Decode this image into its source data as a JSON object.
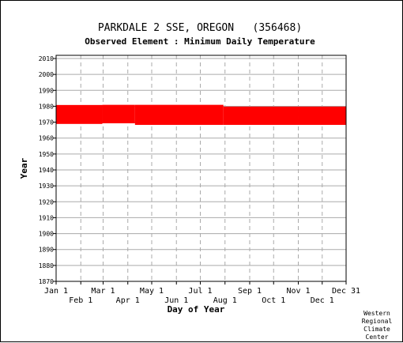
{
  "chart_data": {
    "type": "range-bar",
    "title": "PARKDALE 2 SSE, OREGON   (356468)",
    "subtitle": "Observed Element : Minimum Daily Temperature",
    "xlabel": "Day of Year",
    "ylabel": "Year",
    "ylim": [
      1870,
      2012
    ],
    "yticks": [
      1870,
      1880,
      1890,
      1900,
      1910,
      1920,
      1930,
      1940,
      1950,
      1960,
      1970,
      1980,
      1990,
      2000,
      2010
    ],
    "xlim": [
      1,
      365
    ],
    "xticks_top_row": [
      {
        "label": "Jan 1",
        "day": 1
      },
      {
        "label": "Mar 1",
        "day": 60
      },
      {
        "label": "May 1",
        "day": 121
      },
      {
        "label": "Jul 1",
        "day": 182
      },
      {
        "label": "Sep 1",
        "day": 244
      },
      {
        "label": "Nov 1",
        "day": 305
      },
      {
        "label": "Dec 31",
        "day": 365
      }
    ],
    "xticks_bottom_row": [
      {
        "label": "Feb 1",
        "day": 32
      },
      {
        "label": "Apr 1",
        "day": 91
      },
      {
        "label": "Jun 1",
        "day": 152
      },
      {
        "label": "Aug 1",
        "day": 213
      },
      {
        "label": "Oct 1",
        "day": 274
      },
      {
        "label": "Dec 1",
        "day": 335
      }
    ],
    "gridlines": "dashed",
    "bar_color": "#ff0000",
    "segments": [
      {
        "start_day": 1,
        "end_day": 59,
        "start_year": 1968.9,
        "end_year": 1980.8
      },
      {
        "start_day": 59,
        "end_day": 100,
        "start_year": 1969.3,
        "end_year": 1980.9
      },
      {
        "start_day": 100,
        "end_day": 211,
        "start_year": 1968.3,
        "end_year": 1980.9
      },
      {
        "start_day": 211,
        "end_day": 305,
        "start_year": 1968.3,
        "end_year": 1979.8
      },
      {
        "start_day": 305,
        "end_day": 365,
        "start_year": 1968.3,
        "end_year": 1979.8
      }
    ]
  },
  "credit": [
    "Western",
    "Regional",
    "Climate",
    "Center"
  ]
}
